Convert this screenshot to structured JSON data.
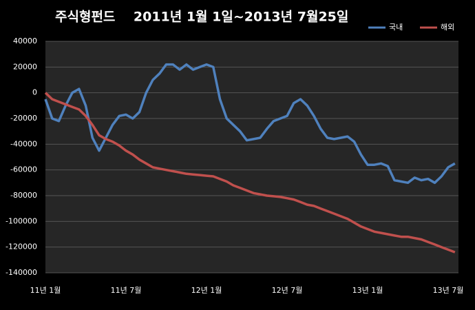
{
  "chart_data": {
    "type": "line",
    "title": "주식형펀드    2011년 1월 1일~2013년 7월25일",
    "categories": [
      "11년 1월",
      null,
      null,
      null,
      null,
      null,
      null,
      null,
      null,
      null,
      null,
      null,
      "11년 7월",
      null,
      null,
      null,
      null,
      null,
      null,
      null,
      null,
      null,
      null,
      null,
      "12년 1월",
      null,
      null,
      null,
      null,
      null,
      null,
      null,
      null,
      null,
      null,
      null,
      "12년 7월",
      null,
      null,
      null,
      null,
      null,
      null,
      null,
      null,
      null,
      null,
      null,
      "13년 1월",
      null,
      null,
      null,
      null,
      null,
      null,
      null,
      null,
      null,
      null,
      null,
      "13년 7월",
      null
    ],
    "series": [
      {
        "name": "국내",
        "color": "#4f81bd",
        "values": [
          -5000,
          -20000,
          -22000,
          -10000,
          0,
          3000,
          -10000,
          -35000,
          -45000,
          -35000,
          -25000,
          -18000,
          -17000,
          -20000,
          -15000,
          0,
          10000,
          15000,
          22000,
          22000,
          18000,
          22000,
          18000,
          20000,
          22000,
          20000,
          -5000,
          -20000,
          -25000,
          -30000,
          -37000,
          -36000,
          -35000,
          -28000,
          -22000,
          -20000,
          -18000,
          -8000,
          -5000,
          -10000,
          -18000,
          -28000,
          -35000,
          -36000,
          -35000,
          -34000,
          -38000,
          -48000,
          -56000,
          -56000,
          -55000,
          -57000,
          -68000,
          -69000,
          -70000,
          -66000,
          -68000,
          -67000,
          -70000,
          -65000,
          -58000,
          -55000
        ]
      },
      {
        "name": "해외",
        "color": "#c0504d",
        "values": [
          0,
          -5000,
          -7000,
          -9000,
          -11000,
          -13000,
          -18000,
          -25000,
          -33000,
          -36000,
          -38000,
          -41000,
          -45000,
          -48000,
          -52000,
          -55000,
          -58000,
          -59000,
          -60000,
          -61000,
          -62000,
          -63000,
          -63500,
          -64000,
          -64500,
          -65000,
          -67000,
          -69000,
          -72000,
          -74000,
          -76000,
          -78000,
          -79000,
          -80000,
          -80500,
          -81000,
          -82000,
          -83000,
          -85000,
          -87000,
          -88000,
          -90000,
          -92000,
          -94000,
          -96000,
          -98000,
          -101000,
          -104000,
          -106000,
          -108000,
          -109000,
          -110000,
          -111000,
          -112000,
          -112000,
          -113000,
          -114000,
          -116000,
          -118000,
          -120000,
          -122000,
          -124000
        ]
      }
    ],
    "ylim": [
      -140000,
      40000
    ],
    "yticks": [
      -140000,
      -120000,
      -100000,
      -80000,
      -60000,
      -40000,
      -20000,
      0,
      20000,
      40000
    ],
    "grid": true,
    "legend": "top-right"
  }
}
